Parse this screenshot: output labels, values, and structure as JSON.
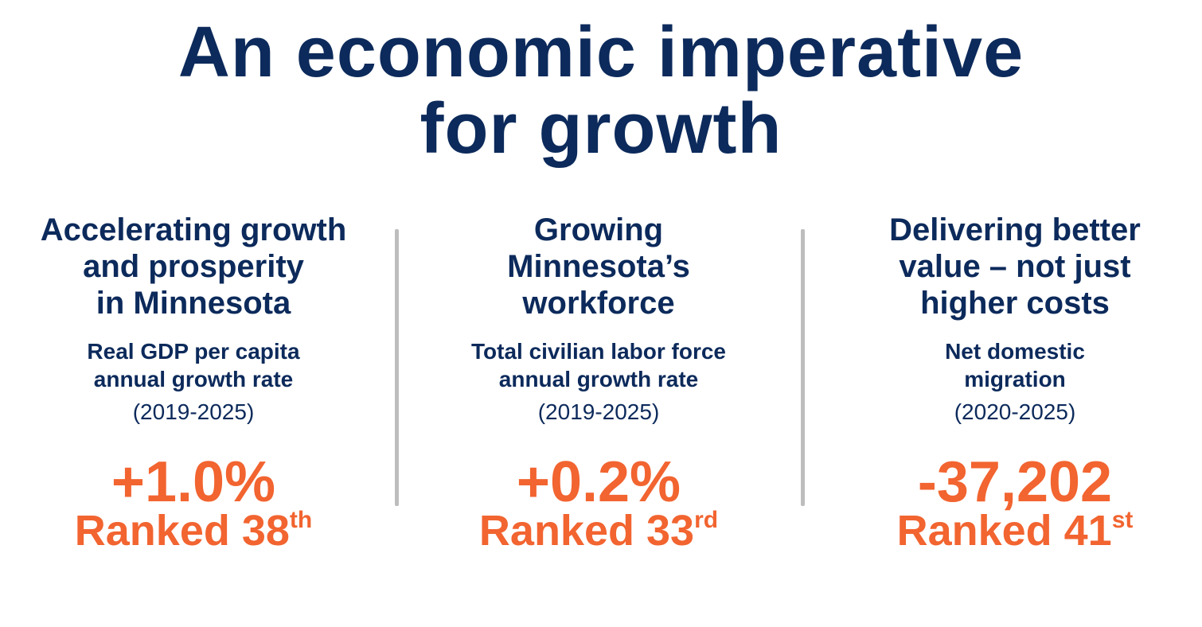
{
  "title": [
    "An economic imperative",
    "for growth"
  ],
  "columns": [
    {
      "heading": [
        "Accelerating growth",
        "and prosperity",
        "in Minnesota"
      ],
      "metric": [
        "Real GDP per capita",
        "annual growth rate"
      ],
      "period": "(2019-2025)",
      "value": "+1.0%",
      "rank": {
        "text": "Ranked 38",
        "suffix": "th"
      }
    },
    {
      "heading": [
        "Growing",
        "Minnesota’s",
        "workforce"
      ],
      "metric": [
        "Total civilian labor force",
        "annual growth rate"
      ],
      "period": "(2019-2025)",
      "value": "+0.2%",
      "rank": {
        "text": "Ranked 33",
        "suffix": "rd"
      }
    },
    {
      "heading": [
        "Delivering better",
        "value – not just",
        "higher costs"
      ],
      "metric": [
        "Net domestic",
        "migration"
      ],
      "period": "(2020-2025)",
      "value": "-37,202",
      "rank": {
        "text": "Ranked 41",
        "suffix": "st"
      }
    }
  ]
}
